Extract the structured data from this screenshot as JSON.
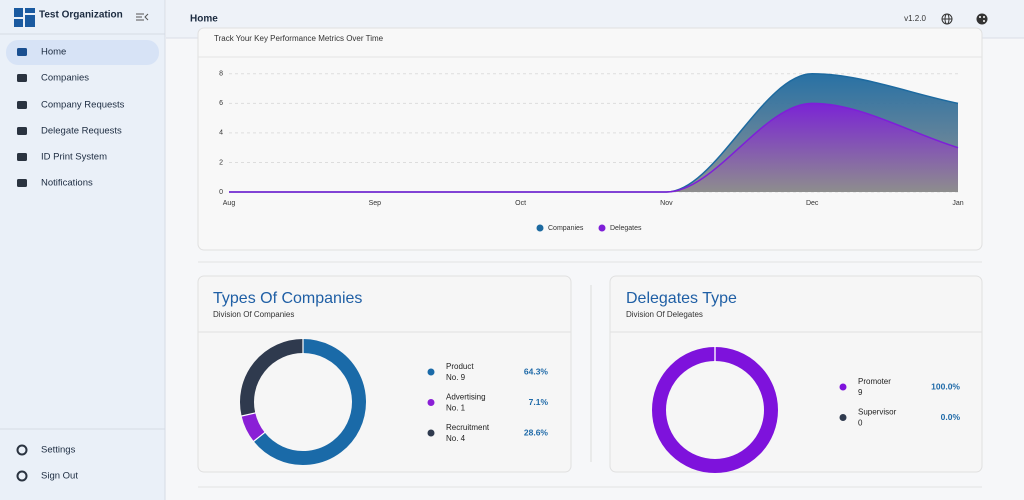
{
  "sidebar": {
    "org": "Test Organization",
    "nav": [
      "Home",
      "Companies",
      "Company Requests",
      "Delegate Requests",
      "ID Print System",
      "Notifications"
    ],
    "bottom": [
      "Settings",
      "Sign Out"
    ]
  },
  "header": {
    "title": "Home",
    "version": "v1.2.0"
  },
  "chart_data": [
    {
      "type": "area",
      "subtitle": "Track Your Key Performance Metrics Over Time",
      "categories": [
        "Aug",
        "Sep",
        "Oct",
        "Nov",
        "Dec",
        "Jan"
      ],
      "ylim": [
        0,
        9
      ],
      "yticks": [
        0,
        2,
        4,
        6,
        8
      ],
      "grid": true,
      "series": [
        {
          "name": "Companies",
          "color": "#1d6aa0",
          "values": [
            0,
            0,
            0,
            0,
            8,
            6
          ]
        },
        {
          "name": "Delegates",
          "color": "#7e1fd8",
          "values": [
            0,
            0,
            0,
            0,
            6,
            3
          ]
        }
      ]
    },
    {
      "type": "donut",
      "title": "Types Of Companies",
      "subtitle": "Division Of Companies",
      "categories": [
        "Product",
        "Advertising",
        "Recruitment"
      ],
      "values": [
        9,
        1,
        4
      ],
      "value_labels": [
        "No. 9",
        "No. 1",
        "No. 4"
      ],
      "percent_labels": [
        "64.3%",
        "7.1%",
        "28.6%"
      ],
      "colors": [
        "#1a6aa8",
        "#8a1fd6",
        "#2f3a4e"
      ]
    },
    {
      "type": "donut",
      "title": "Delegates Type",
      "subtitle": "Division Of Delegates",
      "categories": [
        "Promoter",
        "Supervisor"
      ],
      "values": [
        9,
        0
      ],
      "percent_labels": [
        "100.0%",
        "0.0%"
      ],
      "colors": [
        "#7e12dc",
        "#2f3a4e"
      ]
    }
  ]
}
